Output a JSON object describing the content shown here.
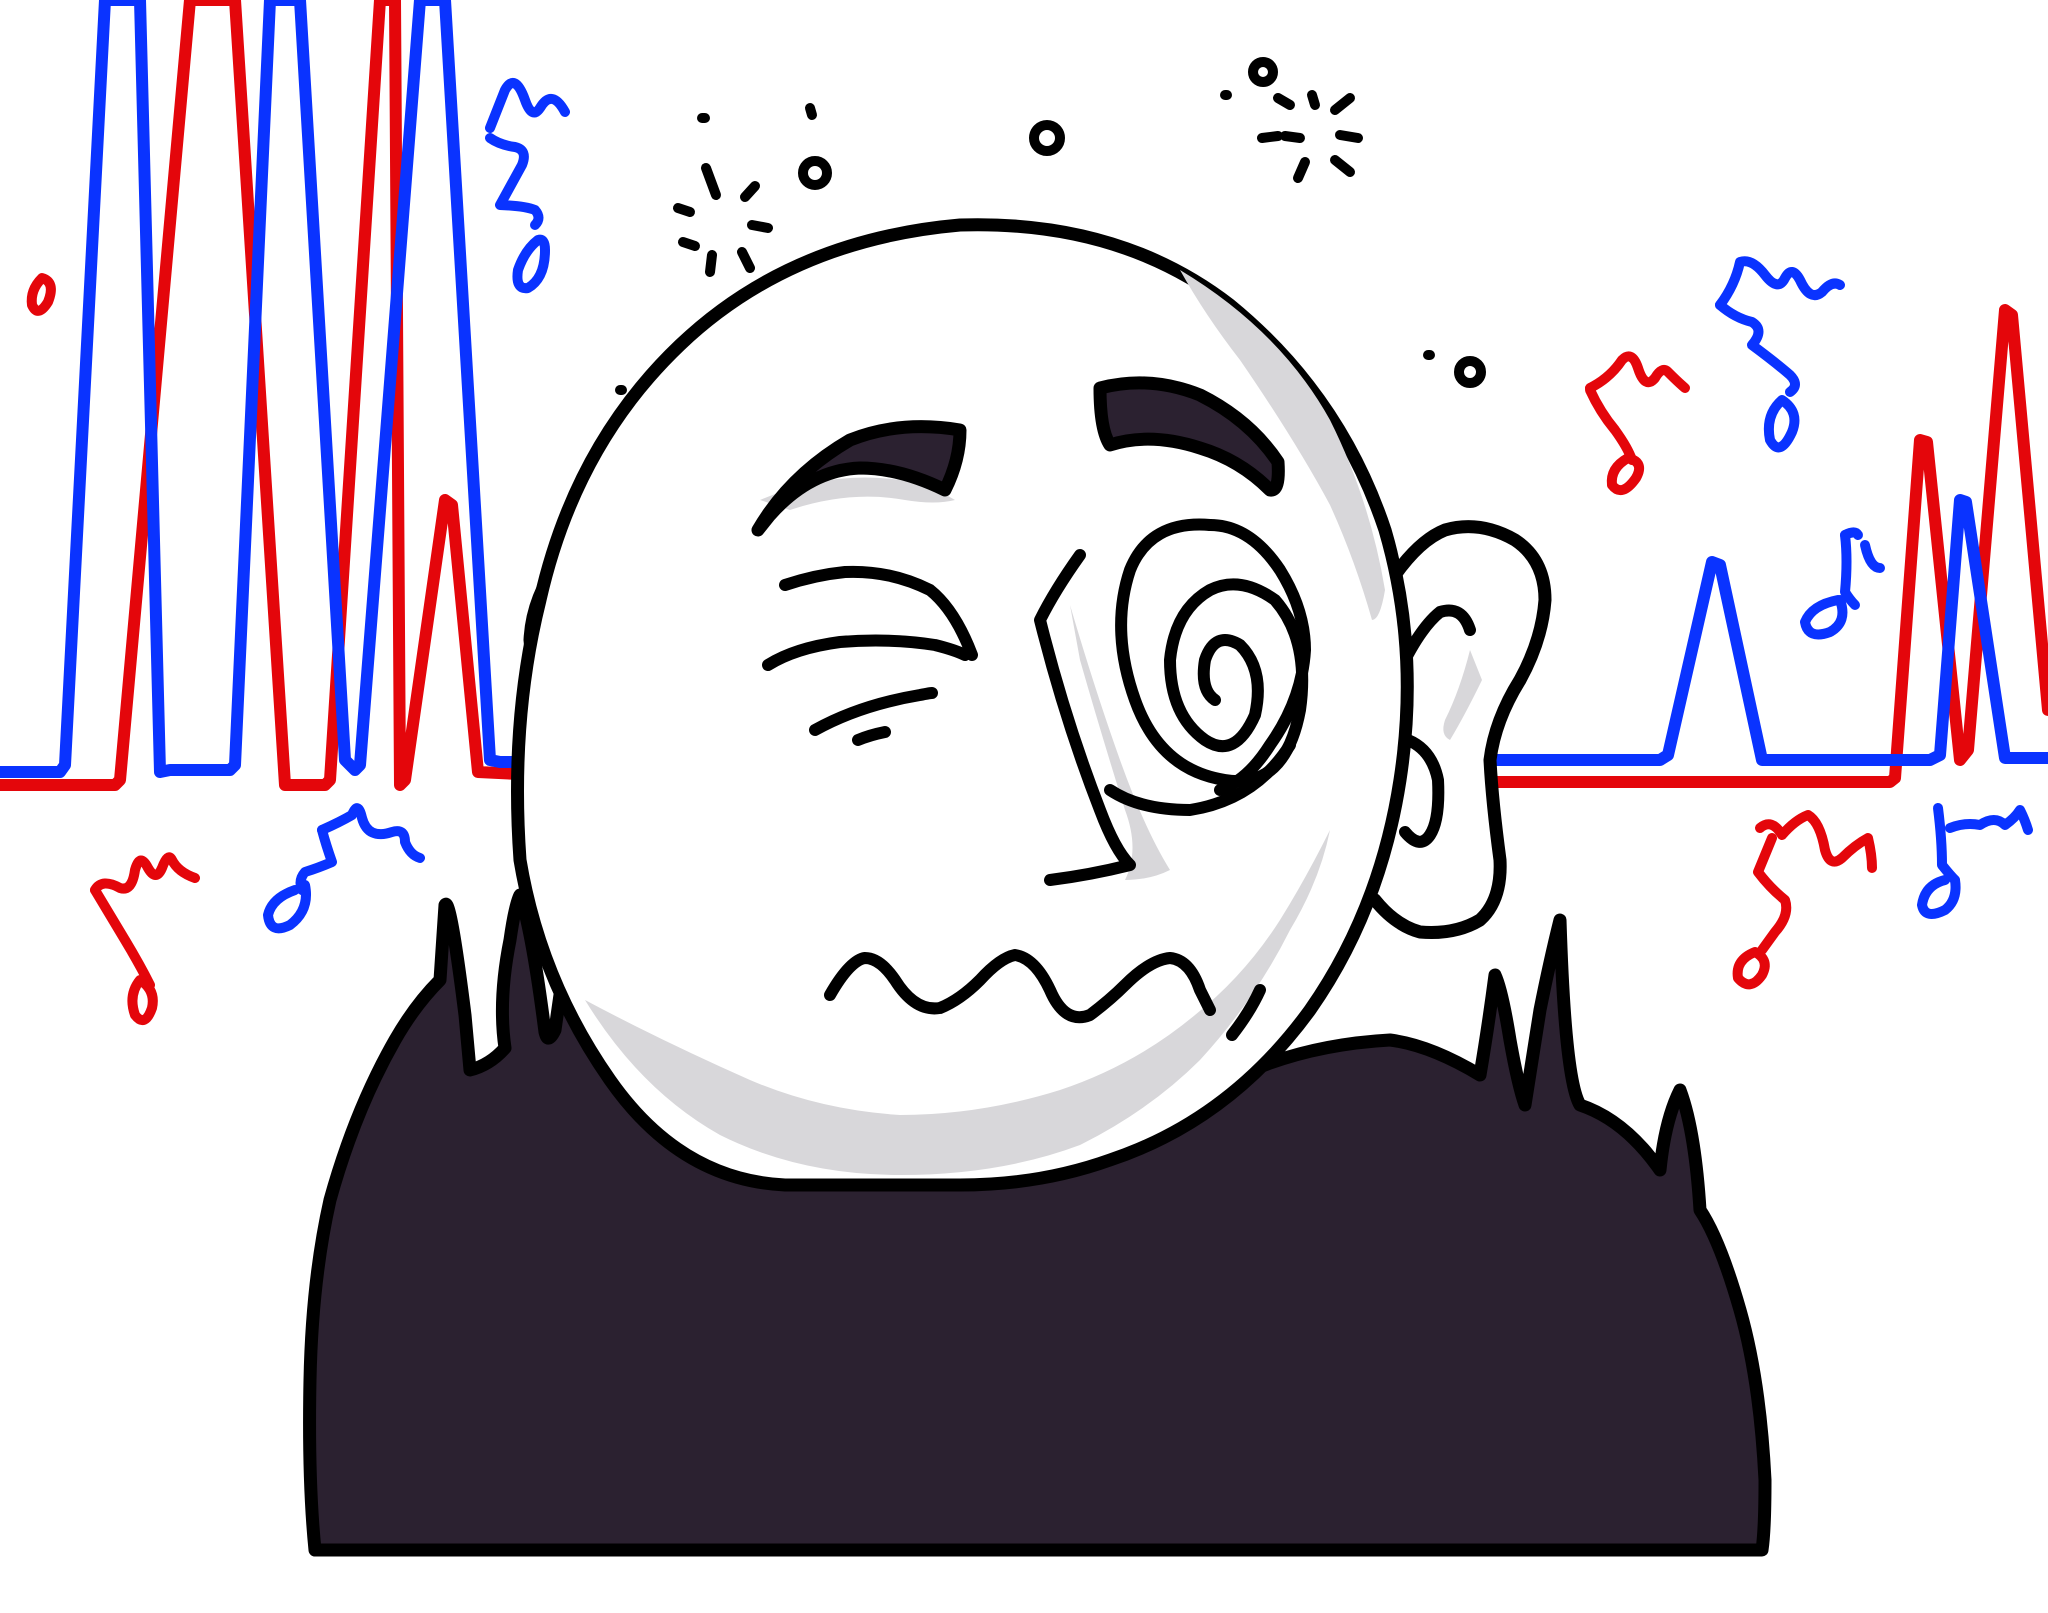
{
  "scene": {
    "description_visible": false
  },
  "colors": {
    "background": "#ffffff",
    "ink": "#000000",
    "shirt": "#2b2130",
    "skin": "#ffffff",
    "shadow": "#d8d7da",
    "brow_fill": "#2b2130",
    "wave_red": "#e4060b",
    "wave_blue": "#0a33ff"
  },
  "icons": {
    "music_notes": "music-note-icon",
    "dizzy_sparks": "sparkle-icon",
    "spiral_eye": "spiral-icon"
  }
}
